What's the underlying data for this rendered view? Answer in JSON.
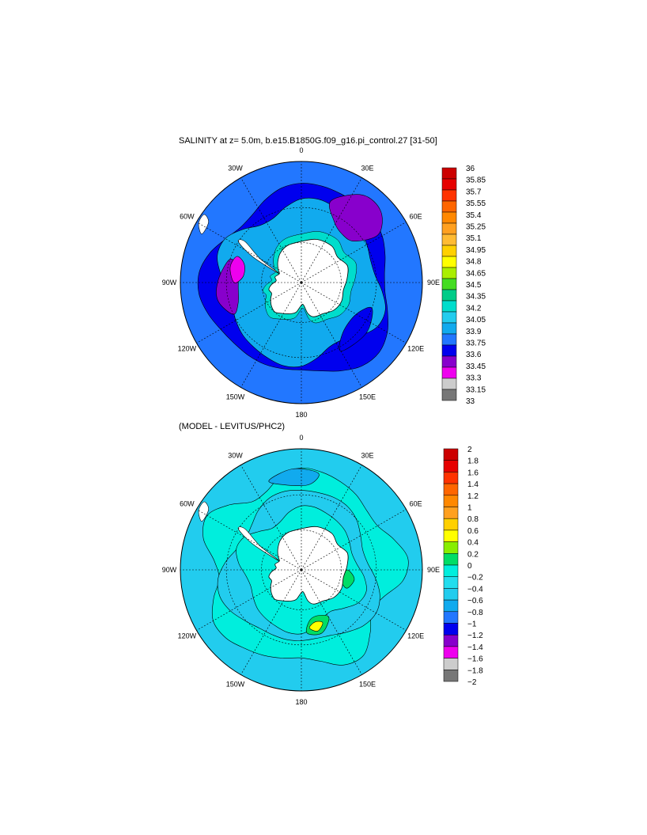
{
  "panels": [
    {
      "title": "SALINITY at z=   5.0m, b.e15.B1850G.f09_g16.pi_control.27 [31-50]",
      "colorbar_labels": [
        "36",
        "35.85",
        "35.7",
        "35.55",
        "35.4",
        "35.25",
        "35.1",
        "34.95",
        "34.8",
        "34.65",
        "34.5",
        "34.35",
        "34.2",
        "34.05",
        "33.9",
        "33.75",
        "33.6",
        "33.45",
        "33.3",
        "33.15",
        "33"
      ],
      "colorbar_colors": [
        "#cc0000",
        "#e60000",
        "#ff3300",
        "#ff6600",
        "#ff8800",
        "#ffa020",
        "#ffbb33",
        "#ffd000",
        "#ffff00",
        "#aaee00",
        "#44dd22",
        "#00cc88",
        "#00ddcc",
        "#22ccee",
        "#11aaee",
        "#2277ff",
        "#0000ee",
        "#8800cc",
        "#ee00ee",
        "#cccccc",
        "#777777"
      ],
      "field_colors": {
        "ocean": "#2277ff",
        "shelf": "#11aaee",
        "deep": "#0000ee",
        "low": "#8800cc",
        "lowest": "#ee00ee",
        "coast": "#00ddcc",
        "land": "#ffffff"
      }
    },
    {
      "title": "(MODEL - LEVITUS/PHC2)",
      "colorbar_labels": [
        "2",
        "1.8",
        "1.6",
        "1.4",
        "1.2",
        "1",
        "0.8",
        "0.6",
        "0.4",
        "0.2",
        "0",
        "−0.2",
        "−0.4",
        "−0.6",
        "−0.8",
        "−1",
        "−1.2",
        "−1.4",
        "−1.6",
        "−1.8",
        "−2"
      ],
      "colorbar_colors": [
        "#cc0000",
        "#e60000",
        "#ff3300",
        "#ff6600",
        "#ff8800",
        "#ffa020",
        "#ffd000",
        "#ffff00",
        "#88ee00",
        "#00dd66",
        "#00eedd",
        "#22ddee",
        "#22ccee",
        "#11aaee",
        "#2277ff",
        "#0000ee",
        "#8800cc",
        "#ee00ee",
        "#cccccc",
        "#777777"
      ],
      "field_colors": {
        "base": "#22ccee",
        "pos": "#00eedd",
        "neg": "#11aaee",
        "green": "#00dd66",
        "yellow": "#ffff00",
        "land": "#ffffff"
      }
    }
  ],
  "longitude_labels": [
    "0",
    "30E",
    "60E",
    "90E",
    "120E",
    "150E",
    "180",
    "150W",
    "120W",
    "90W",
    "60W",
    "30W"
  ]
}
